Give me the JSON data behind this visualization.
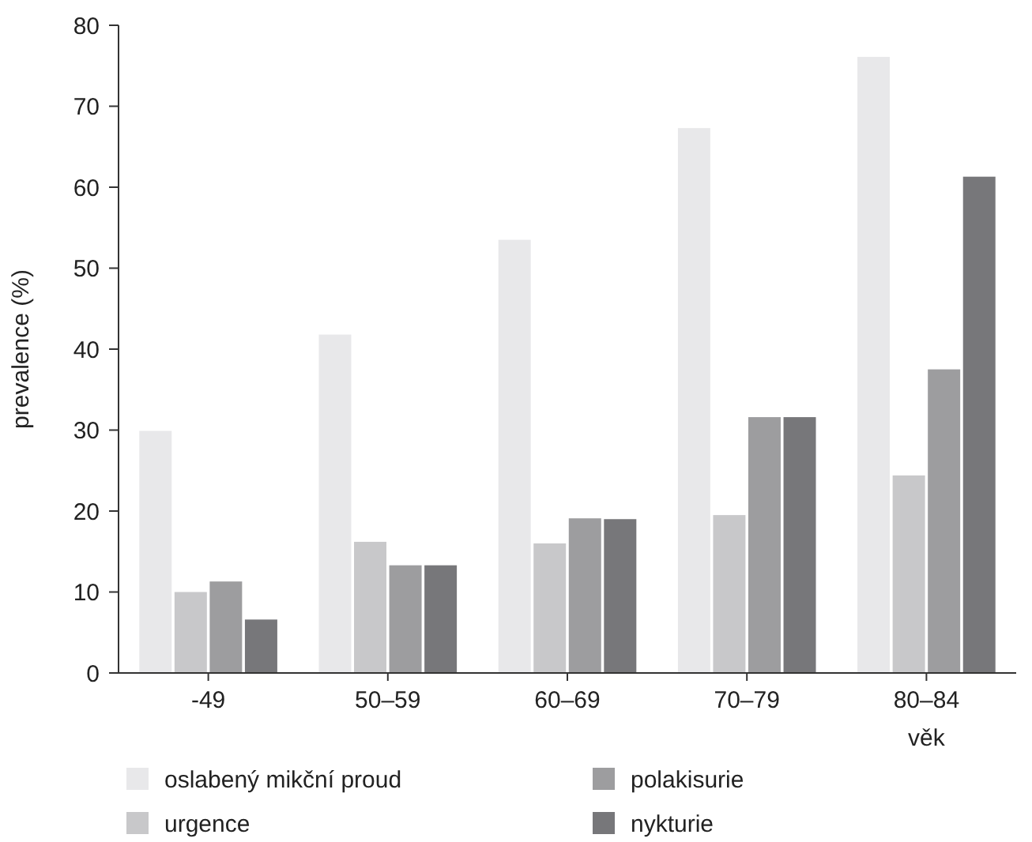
{
  "chart_data": {
    "type": "bar",
    "ylabel": "prevalence (%)",
    "xlabel": "věk",
    "categories": [
      "-49",
      "50–59",
      "60–69",
      "70–79",
      "80–84"
    ],
    "series": [
      {
        "name": "oslabený mikční proud",
        "color": "#e8e8ea",
        "values": [
          29.9,
          41.8,
          53.5,
          67.3,
          76.1
        ]
      },
      {
        "name": "urgence",
        "color": "#c8c8ca",
        "values": [
          10,
          16.2,
          16,
          19.5,
          24.4
        ]
      },
      {
        "name": "polakisurie",
        "color": "#9d9d9f",
        "values": [
          11.3,
          13.3,
          19.1,
          31.6,
          37.5
        ]
      },
      {
        "name": "nykturie",
        "color": "#77777a",
        "values": [
          6.6,
          13.3,
          19,
          31.6,
          61.3
        ]
      }
    ],
    "ylim": [
      0,
      80
    ],
    "yticks": [
      0,
      10,
      20,
      30,
      40,
      50,
      60,
      70,
      80
    ],
    "grid": false,
    "legend": "bottom"
  }
}
